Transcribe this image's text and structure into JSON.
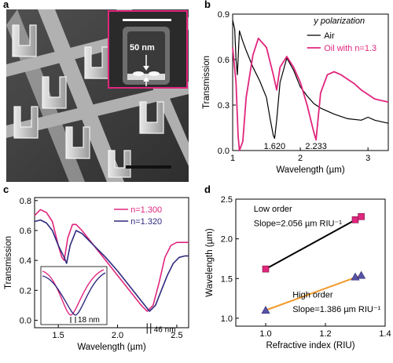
{
  "panels": {
    "a": {
      "label": "a",
      "inset_annotation": "50 nm",
      "colors": {
        "inset_border": "#e0267d",
        "scalebar": "#ffffff"
      }
    },
    "b": {
      "label": "b",
      "chart_data": {
        "type": "line",
        "xlabel": "Wavelength (µm)",
        "ylabel": "Transmission",
        "xlim": [
          1.0,
          3.3
        ],
        "ylim": [
          0.0,
          0.9
        ],
        "xticks": [
          "1",
          "2",
          "3"
        ],
        "yticks": [
          "0.0",
          "0.3",
          "0.6",
          "0.9"
        ],
        "legend_title": "y polarization",
        "legend_placement": "top-right",
        "annotations": [
          "1.620",
          "2.233"
        ],
        "series": [
          {
            "name": "Air",
            "color": "#000000",
            "x": [
              1.0,
              1.03,
              1.05,
              1.07,
              1.1,
              1.15,
              1.2,
              1.3,
              1.4,
              1.5,
              1.55,
              1.6,
              1.62,
              1.65,
              1.7,
              1.8,
              1.9,
              2.0,
              2.1,
              2.2,
              2.3,
              2.5,
              2.7,
              2.9,
              3.0,
              3.1,
              3.2,
              3.3
            ],
            "y": [
              0.86,
              0.8,
              0.6,
              0.5,
              0.79,
              0.72,
              0.66,
              0.55,
              0.46,
              0.35,
              0.22,
              0.1,
              0.08,
              0.2,
              0.45,
              0.61,
              0.53,
              0.42,
              0.36,
              0.31,
              0.28,
              0.24,
              0.21,
              0.2,
              0.22,
              0.2,
              0.19,
              0.18
            ]
          },
          {
            "name": "Oil with n=1.3",
            "color": "#e0267d",
            "x": [
              1.0,
              1.05,
              1.08,
              1.1,
              1.15,
              1.2,
              1.3,
              1.38,
              1.5,
              1.6,
              1.65,
              1.7,
              1.8,
              1.9,
              2.0,
              2.1,
              2.2,
              2.233,
              2.25,
              2.3,
              2.4,
              2.5,
              2.6,
              2.7,
              2.8,
              2.9,
              3.0,
              3.1,
              3.2,
              3.3
            ],
            "y": [
              0.68,
              0.45,
              0.1,
              0.0,
              0.06,
              0.35,
              0.63,
              0.74,
              0.68,
              0.5,
              0.4,
              0.55,
              0.62,
              0.55,
              0.45,
              0.3,
              0.12,
              0.07,
              0.15,
              0.38,
              0.5,
              0.52,
              0.5,
              0.47,
              0.44,
              0.4,
              0.37,
              0.34,
              0.33,
              0.32
            ]
          }
        ]
      }
    },
    "c": {
      "label": "c",
      "chart_data": {
        "type": "line",
        "xlabel": "Wavelength (µm)",
        "ylabel": "Transmission",
        "xlim": [
          1.3,
          2.6
        ],
        "ylim": [
          -0.05,
          0.82
        ],
        "xticks": [
          "1.5",
          "2.0",
          "2.5"
        ],
        "yticks": [
          "0.0",
          "0.2",
          "0.4",
          "0.6",
          "0.8"
        ],
        "legend_placement": "top-right",
        "annotations": [
          "18 nm",
          "46 nm"
        ],
        "series": [
          {
            "name": "n=1.300",
            "color": "#e0267d",
            "x": [
              1.3,
              1.35,
              1.4,
              1.45,
              1.5,
              1.53,
              1.55,
              1.58,
              1.62,
              1.65,
              1.7,
              1.8,
              1.9,
              2.0,
              2.1,
              2.2,
              2.25,
              2.3,
              2.35,
              2.4,
              2.45,
              2.5,
              2.55,
              2.6
            ],
            "y": [
              0.7,
              0.74,
              0.72,
              0.66,
              0.5,
              0.42,
              0.4,
              0.55,
              0.64,
              0.64,
              0.6,
              0.5,
              0.4,
              0.3,
              0.2,
              0.1,
              0.06,
              0.1,
              0.25,
              0.42,
              0.5,
              0.52,
              0.52,
              0.52
            ]
          },
          {
            "name": "n=1.320",
            "color": "#2e2a7e",
            "x": [
              1.3,
              1.35,
              1.4,
              1.45,
              1.5,
              1.55,
              1.57,
              1.6,
              1.65,
              1.7,
              1.8,
              1.9,
              2.0,
              2.1,
              2.2,
              2.27,
              2.32,
              2.37,
              2.42,
              2.47,
              2.52,
              2.57,
              2.6
            ],
            "y": [
              0.66,
              0.67,
              0.65,
              0.6,
              0.5,
              0.42,
              0.38,
              0.5,
              0.6,
              0.58,
              0.5,
              0.42,
              0.33,
              0.23,
              0.13,
              0.06,
              0.1,
              0.2,
              0.3,
              0.38,
              0.42,
              0.43,
              0.43
            ]
          }
        ]
      }
    },
    "d": {
      "label": "d",
      "chart_data": {
        "type": "scatter",
        "xlabel": "Refractive index (RIU)",
        "ylabel": "Wavelength (µm)",
        "xlim": [
          0.9,
          1.4
        ],
        "ylim": [
          0.9,
          2.5
        ],
        "xticks": [
          "1.0",
          "1.2",
          "1.4"
        ],
        "yticks": [
          "1.0",
          "1.5",
          "2.0",
          "2.5"
        ],
        "annotations": [
          "Low  order",
          "Slope=2.056 µm RIU⁻¹",
          "High order",
          "Slope=1.386 µm RIU⁻¹"
        ],
        "series": [
          {
            "marker": "square",
            "color": "#e0267d",
            "line_color": "#000000",
            "x": [
              1.0,
              1.3,
              1.32
            ],
            "y": [
              1.62,
              2.24,
              2.28
            ]
          },
          {
            "marker": "triangle",
            "color": "#5753a6",
            "line_color": "#f19a2b",
            "x": [
              1.0,
              1.3,
              1.32
            ],
            "y": [
              1.1,
              1.52,
              1.54
            ]
          }
        ]
      }
    }
  }
}
